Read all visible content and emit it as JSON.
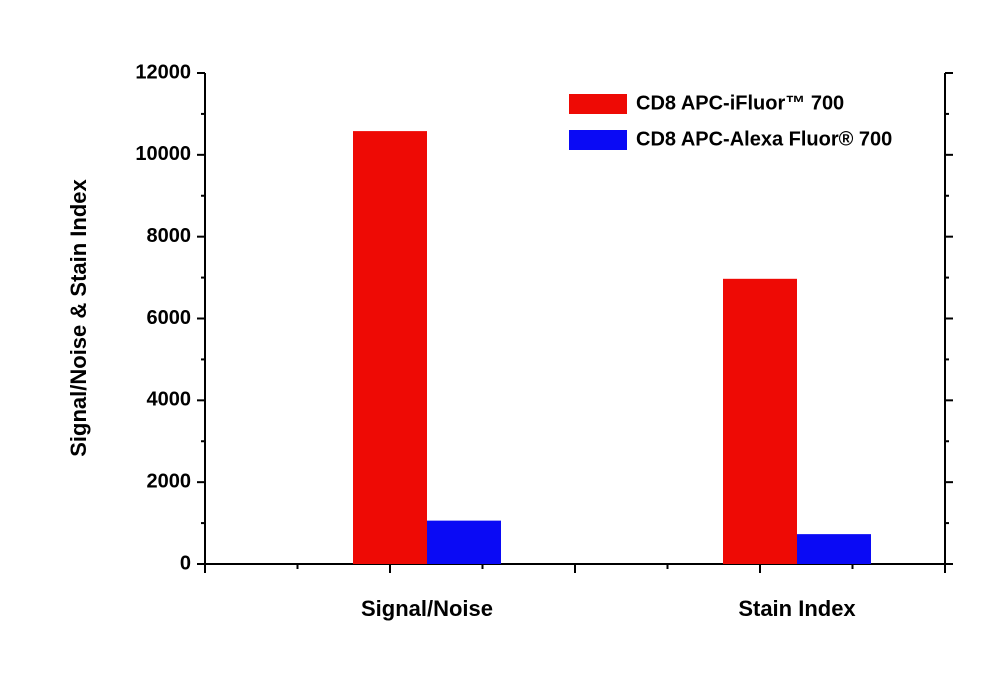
{
  "chart_data": {
    "type": "bar",
    "y_label": "Signal/Noise & Stain Index",
    "categories": [
      "Signal/Noise",
      "Stain Index"
    ],
    "series": [
      {
        "name": "CD8 APC-iFluor™ 700",
        "color": "#ee0a05",
        "values": [
          10580,
          6970
        ]
      },
      {
        "name": "CD8 APC-Alexa Fluor® 700",
        "color": "#0a0af5",
        "values": [
          1060,
          730
        ]
      }
    ],
    "ylim": [
      0,
      12000
    ],
    "yticks": [
      0,
      2000,
      4000,
      6000,
      8000,
      10000,
      12000
    ],
    "legend": "upper right"
  }
}
